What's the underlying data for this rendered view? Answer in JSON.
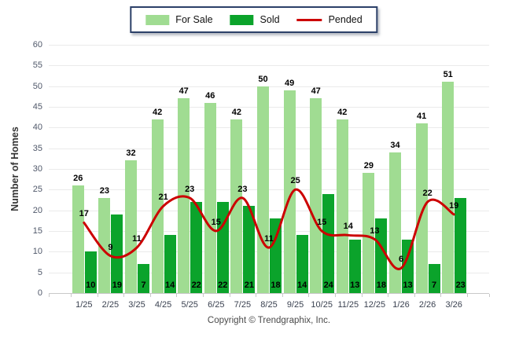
{
  "legend": {
    "for_sale": "For Sale",
    "sold": "Sold",
    "pended": "Pended"
  },
  "footer": {
    "copyright": "Copyright © Trendgraphix, Inc."
  },
  "colors": {
    "for_sale": "#A0DC92",
    "sold": "#0BA32B",
    "pended": "#CC0000",
    "grid": "#EAEAEA",
    "axis": "#C8C8C8"
  },
  "chart_data": {
    "type": "bar",
    "title": "",
    "categories": [
      "1/25",
      "2/25",
      "3/25",
      "4/25",
      "5/25",
      "6/25",
      "7/25",
      "8/25",
      "9/25",
      "10/25",
      "11/25",
      "12/25",
      "1/26",
      "2/26",
      "3/26"
    ],
    "series": [
      {
        "name": "For Sale",
        "type": "bar",
        "color": "#A0DC92",
        "values": [
          26,
          23,
          32,
          42,
          47,
          46,
          42,
          50,
          49,
          47,
          42,
          29,
          34,
          41,
          51
        ]
      },
      {
        "name": "Sold",
        "type": "bar",
        "color": "#0BA32B",
        "values": [
          10,
          19,
          7,
          14,
          22,
          22,
          21,
          18,
          14,
          24,
          13,
          18,
          13,
          7,
          23
        ]
      },
      {
        "name": "Pended",
        "type": "line",
        "color": "#CC0000",
        "values": [
          17,
          9,
          11,
          21,
          23,
          15,
          23,
          11,
          25,
          15,
          14,
          13,
          6,
          22,
          19
        ]
      }
    ],
    "xlabel": "",
    "ylabel": "Number of Homes",
    "ylim": [
      0,
      60
    ],
    "ytick_step": 5,
    "grid": true,
    "legend_position": "top-center",
    "value_labels": true
  }
}
